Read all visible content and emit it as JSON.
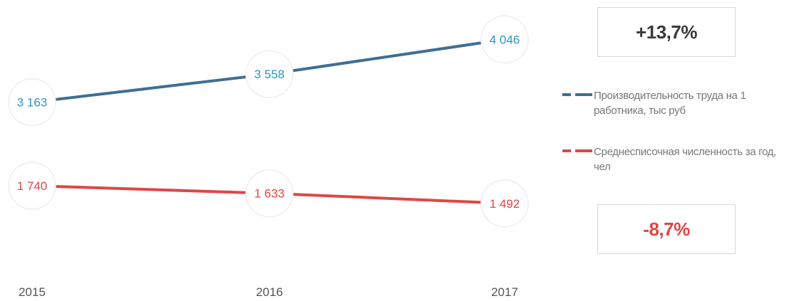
{
  "chart_data": {
    "type": "line",
    "categories": [
      "2015",
      "2016",
      "2017"
    ],
    "series": [
      {
        "name": "Производительность труда на 1 работника, тыс руб",
        "values": [
          3163,
          3558,
          4046
        ],
        "labels": [
          "3 163",
          "3 558",
          "4 046"
        ],
        "color": "#3f6e93",
        "label_color": "#2b95c9"
      },
      {
        "name": "Среднесписочная численность за год, чел",
        "values": [
          1740,
          1633,
          1492
        ],
        "labels": [
          "1 740",
          "1 633",
          "1 492"
        ],
        "color": "#e04646",
        "label_color": "#e04646"
      }
    ],
    "legend_position": "right",
    "grid": false
  },
  "badges": {
    "productivity_change": "+13,7%",
    "headcount_change": "-8,7%"
  },
  "colors": {
    "productivity": "#3f6e93",
    "productivity_label": "#2b95c9",
    "headcount": "#e04646",
    "axis_text": "#555555"
  }
}
